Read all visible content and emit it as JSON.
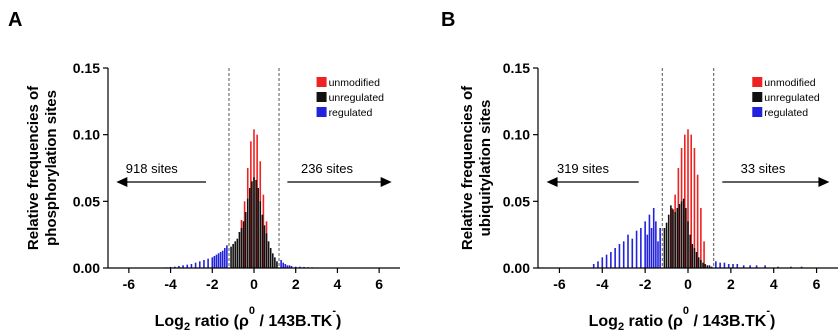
{
  "chart_data": [
    {
      "panel": "A",
      "type": "bar",
      "ylabel_line1": "Relative frequencies of",
      "ylabel_line2": "phosphorylation sites",
      "xlabel": {
        "pre": "Log",
        "sub": "2",
        "mid": " ratio (ρ",
        "sup": "0",
        "post": " / 143B.TK",
        "sup2": "-",
        "end": ")"
      },
      "xlim": [
        -7,
        7
      ],
      "ylim": [
        0,
        0.15
      ],
      "xticks": [
        -6,
        -4,
        -2,
        0,
        2,
        4,
        6
      ],
      "yticks": [
        "0.00",
        "0.05",
        "0.10",
        "0.15"
      ],
      "cutoffs": [
        -1.2,
        1.2
      ],
      "legend": [
        "unmodified",
        "unregulated",
        "regulated"
      ],
      "left_annotation": "918 sites",
      "right_annotation": "236 sites",
      "series": [
        {
          "name": "unmodified",
          "color": "#ee2222",
          "x": [
            -0.6,
            -0.45,
            -0.3,
            -0.15,
            0.0,
            0.15,
            0.3,
            0.45,
            0.6
          ],
          "values": [
            0.036,
            0.05,
            0.075,
            0.095,
            0.104,
            0.1,
            0.08,
            0.055,
            0.035
          ]
        },
        {
          "name": "unregulated",
          "color": "#111111",
          "x": [
            -1.1,
            -1.0,
            -0.9,
            -0.8,
            -0.7,
            -0.6,
            -0.5,
            -0.4,
            -0.3,
            -0.2,
            -0.1,
            0.0,
            0.1,
            0.2,
            0.3,
            0.4,
            0.5,
            0.6,
            0.7,
            0.8,
            0.9,
            1.0,
            1.1
          ],
          "values": [
            0.016,
            0.018,
            0.02,
            0.022,
            0.027,
            0.03,
            0.035,
            0.042,
            0.052,
            0.06,
            0.065,
            0.068,
            0.066,
            0.06,
            0.05,
            0.04,
            0.032,
            0.026,
            0.02,
            0.015,
            0.011,
            0.008,
            0.005
          ]
        },
        {
          "name": "regulated",
          "color": "#2222dd",
          "x": [
            -4.2,
            -4.0,
            -3.8,
            -3.6,
            -3.4,
            -3.2,
            -3.0,
            -2.8,
            -2.6,
            -2.4,
            -2.2,
            -2.0,
            -1.9,
            -1.8,
            -1.7,
            -1.6,
            -1.5,
            -1.4,
            -1.3,
            1.3,
            1.4,
            1.5,
            1.6,
            1.7,
            1.8,
            2.0,
            2.2,
            2.4,
            2.6,
            2.8,
            3.0,
            3.3,
            3.6
          ],
          "values": [
            0.0005,
            0.0008,
            0.001,
            0.0015,
            0.002,
            0.0025,
            0.003,
            0.004,
            0.005,
            0.006,
            0.007,
            0.008,
            0.009,
            0.01,
            0.011,
            0.012,
            0.013,
            0.015,
            0.017,
            0.006,
            0.004,
            0.003,
            0.002,
            0.002,
            0.0015,
            0.001,
            0.001,
            0.0008,
            0.0006,
            0.0005,
            0.0004,
            0.0003,
            0.0002
          ]
        }
      ]
    },
    {
      "panel": "B",
      "type": "bar",
      "ylabel_line1": "Relative frequencies of",
      "ylabel_line2": "ubiquitylation sites",
      "xlabel": {
        "pre": "Log",
        "sub": "2",
        "mid": " ratio (ρ",
        "sup": "0",
        "post": " / 143B.TK",
        "sup2": "-",
        "end": ")"
      },
      "xlim": [
        -7,
        7
      ],
      "ylim": [
        0,
        0.15
      ],
      "xticks": [
        -6,
        -4,
        -2,
        0,
        2,
        4,
        6
      ],
      "yticks": [
        "0.00",
        "0.05",
        "0.10",
        "0.15"
      ],
      "cutoffs": [
        -1.2,
        1.2
      ],
      "legend": [
        "unmodified",
        "unregulated",
        "regulated"
      ],
      "left_annotation": "319 sites",
      "right_annotation": "33 sites",
      "series": [
        {
          "name": "unmodified",
          "color": "#ee2222",
          "x": [
            -0.75,
            -0.6,
            -0.45,
            -0.3,
            -0.15,
            0.0,
            0.15,
            0.3,
            0.45,
            0.6,
            0.75
          ],
          "values": [
            0.045,
            0.055,
            0.075,
            0.09,
            0.1,
            0.104,
            0.1,
            0.09,
            0.07,
            0.045,
            0.02
          ]
        },
        {
          "name": "unregulated",
          "color": "#111111",
          "x": [
            -1.1,
            -1.0,
            -0.9,
            -0.8,
            -0.7,
            -0.6,
            -0.5,
            -0.4,
            -0.3,
            -0.2,
            -0.1,
            0.0,
            0.1,
            0.2,
            0.3,
            0.4,
            0.5,
            0.6,
            0.7,
            0.8,
            0.9,
            1.0,
            1.1
          ],
          "values": [
            0.03,
            0.034,
            0.04,
            0.047,
            0.044,
            0.042,
            0.045,
            0.048,
            0.05,
            0.052,
            0.045,
            0.035,
            0.025,
            0.018,
            0.015,
            0.012,
            0.008,
            0.006,
            0.004,
            0.003,
            0.002,
            0.002,
            0.001
          ]
        },
        {
          "name": "regulated",
          "color": "#2222dd",
          "x": [
            -4.4,
            -4.2,
            -4.0,
            -3.8,
            -3.6,
            -3.4,
            -3.2,
            -3.0,
            -2.8,
            -2.6,
            -2.4,
            -2.2,
            -2.0,
            -1.9,
            -1.8,
            -1.7,
            -1.6,
            -1.5,
            -1.4,
            -1.3,
            1.3,
            1.5,
            1.7,
            1.9,
            2.1,
            2.3,
            2.6,
            2.9,
            3.2,
            3.6,
            4.2,
            4.8,
            5.3
          ],
          "values": [
            0.003,
            0.005,
            0.008,
            0.01,
            0.012,
            0.015,
            0.018,
            0.02,
            0.025,
            0.022,
            0.028,
            0.03,
            0.035,
            0.025,
            0.04,
            0.03,
            0.045,
            0.035,
            0.02,
            0.03,
            0.005,
            0.004,
            0.004,
            0.003,
            0.003,
            0.003,
            0.002,
            0.002,
            0.002,
            0.002,
            0.001,
            0.001,
            0.001
          ]
        }
      ]
    }
  ]
}
